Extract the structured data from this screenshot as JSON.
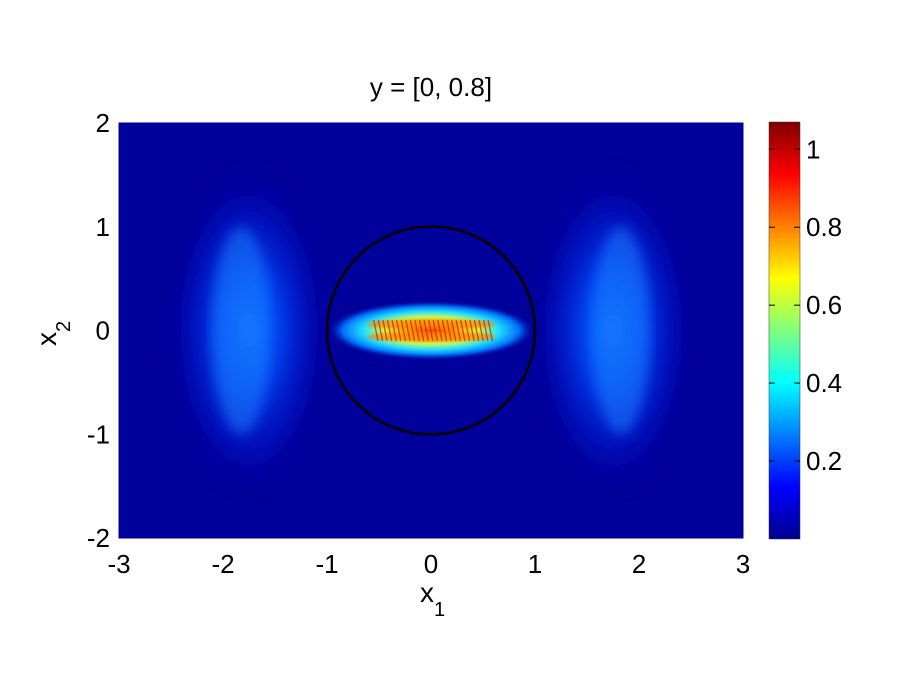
{
  "chart_data": {
    "type": "heatmap",
    "title": "y = [0, 0.8]",
    "xlabel": "x",
    "xlabel_subscript": "1",
    "ylabel": "x",
    "ylabel_subscript": "2",
    "xlim": [
      -3,
      3
    ],
    "ylim": [
      -2,
      2
    ],
    "x_ticks": [
      -3,
      -2,
      -1,
      0,
      1,
      2,
      3
    ],
    "y_ticks": [
      -2,
      -1,
      0,
      1,
      2
    ],
    "colorbar": {
      "colormap": "jet",
      "range": [
        0,
        1.07
      ],
      "ticks": [
        0.2,
        0.4,
        0.6,
        0.8,
        1
      ],
      "tick_labels": [
        "0.2",
        "0.4",
        "0.6",
        "0.8",
        "1"
      ]
    },
    "overlay_circle": {
      "center": [
        0,
        0
      ],
      "radius": 1,
      "color": "#000000"
    },
    "features": [
      {
        "name": "left lobe",
        "center": [
          -1.75,
          0
        ],
        "peak": 0.25
      },
      {
        "name": "right lobe",
        "center": [
          1.75,
          0
        ],
        "peak": 0.25
      },
      {
        "name": "central band",
        "center": [
          0,
          0
        ],
        "half_width": 1.0,
        "peak": 1.05
      }
    ],
    "grid": false
  }
}
